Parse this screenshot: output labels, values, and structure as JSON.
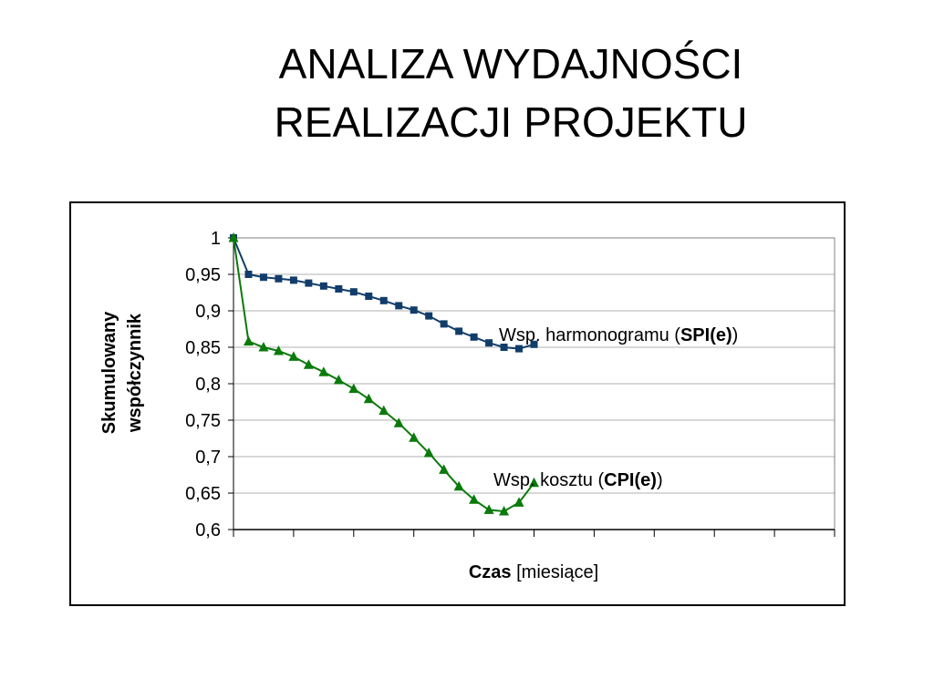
{
  "title": {
    "line1": "ANALIZA WYDAJNOŚCI",
    "line2": "REALIZACJI PROJEKTU"
  },
  "chart_data": {
    "type": "line",
    "ylabel_line1": "Skumulowany",
    "ylabel_line2": "współczynnik",
    "xlabel_bold": "Czas",
    "xlabel_rest": " [miesiące]",
    "ylim": [
      0.6,
      1.0
    ],
    "yticks": [
      "0,6",
      "0,65",
      "0,7",
      "0,75",
      "0,8",
      "0,85",
      "0,9",
      "0,95",
      "1"
    ],
    "ytick_values": [
      0.6,
      0.65,
      0.7,
      0.75,
      0.8,
      0.85,
      0.9,
      0.95,
      1.0
    ],
    "x_major_ticks": 10,
    "x_points_per_major": 4,
    "grid": true,
    "series": [
      {
        "label_prefix": "Wsp. harmonogramu (",
        "label_bold": "SPI(e)",
        "label_suffix": ")",
        "color": "#123d6b",
        "marker": "square",
        "values": [
          1.0,
          0.95,
          0.946,
          0.944,
          0.942,
          0.938,
          0.934,
          0.93,
          0.926,
          0.92,
          0.914,
          0.907,
          0.901,
          0.893,
          0.882,
          0.872,
          0.864,
          0.856,
          0.85,
          0.848,
          0.854
        ]
      },
      {
        "label_prefix": "Wsp. kosztu (",
        "label_bold": "CPI(e)",
        "label_suffix": ")",
        "color": "#0a7a0a",
        "marker": "triangle",
        "values": [
          1.0,
          0.858,
          0.85,
          0.845,
          0.837,
          0.826,
          0.816,
          0.805,
          0.793,
          0.779,
          0.763,
          0.746,
          0.726,
          0.705,
          0.682,
          0.659,
          0.641,
          0.627,
          0.625,
          0.637,
          0.664
        ]
      }
    ]
  }
}
